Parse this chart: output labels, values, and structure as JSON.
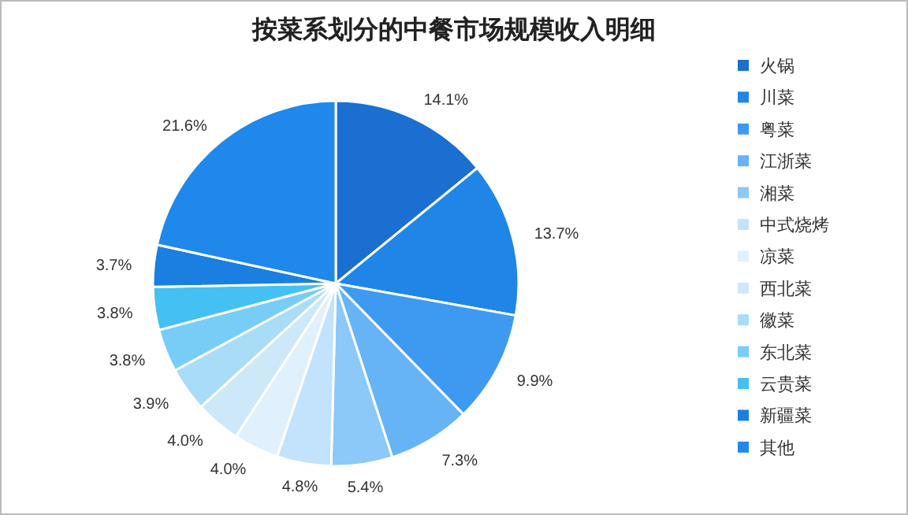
{
  "chart_data": {
    "type": "pie",
    "title": "按菜系划分的中餐市场规模收入明细",
    "categories": [
      "火锅",
      "川菜",
      "粤菜",
      "江浙菜",
      "湘菜",
      "中式烧烤",
      "凉菜",
      "西北菜",
      "徽菜",
      "东北菜",
      "云贵菜",
      "新疆菜",
      "其他"
    ],
    "values": [
      14.1,
      13.7,
      9.9,
      7.3,
      5.4,
      4.8,
      4.0,
      4.0,
      3.9,
      3.8,
      3.8,
      3.7,
      21.6
    ],
    "colors": [
      "#1a6fd0",
      "#1f86e8",
      "#3e9af0",
      "#66b3f5",
      "#8cc8f8",
      "#c3e2fb",
      "#e0f0fd",
      "#cde9f9",
      "#a8dcf7",
      "#78cdf6",
      "#45c0f2",
      "#1a7fe0",
      "#1f88ea"
    ],
    "legend": "right",
    "value_labels": [
      "14.1%",
      "13.7%",
      "9.9%",
      "7.3%",
      "5.4%",
      "4.8%",
      "4.0%",
      "4.0%",
      "3.9%",
      "3.8%",
      "3.8%",
      "3.7%",
      "21.6%"
    ]
  }
}
